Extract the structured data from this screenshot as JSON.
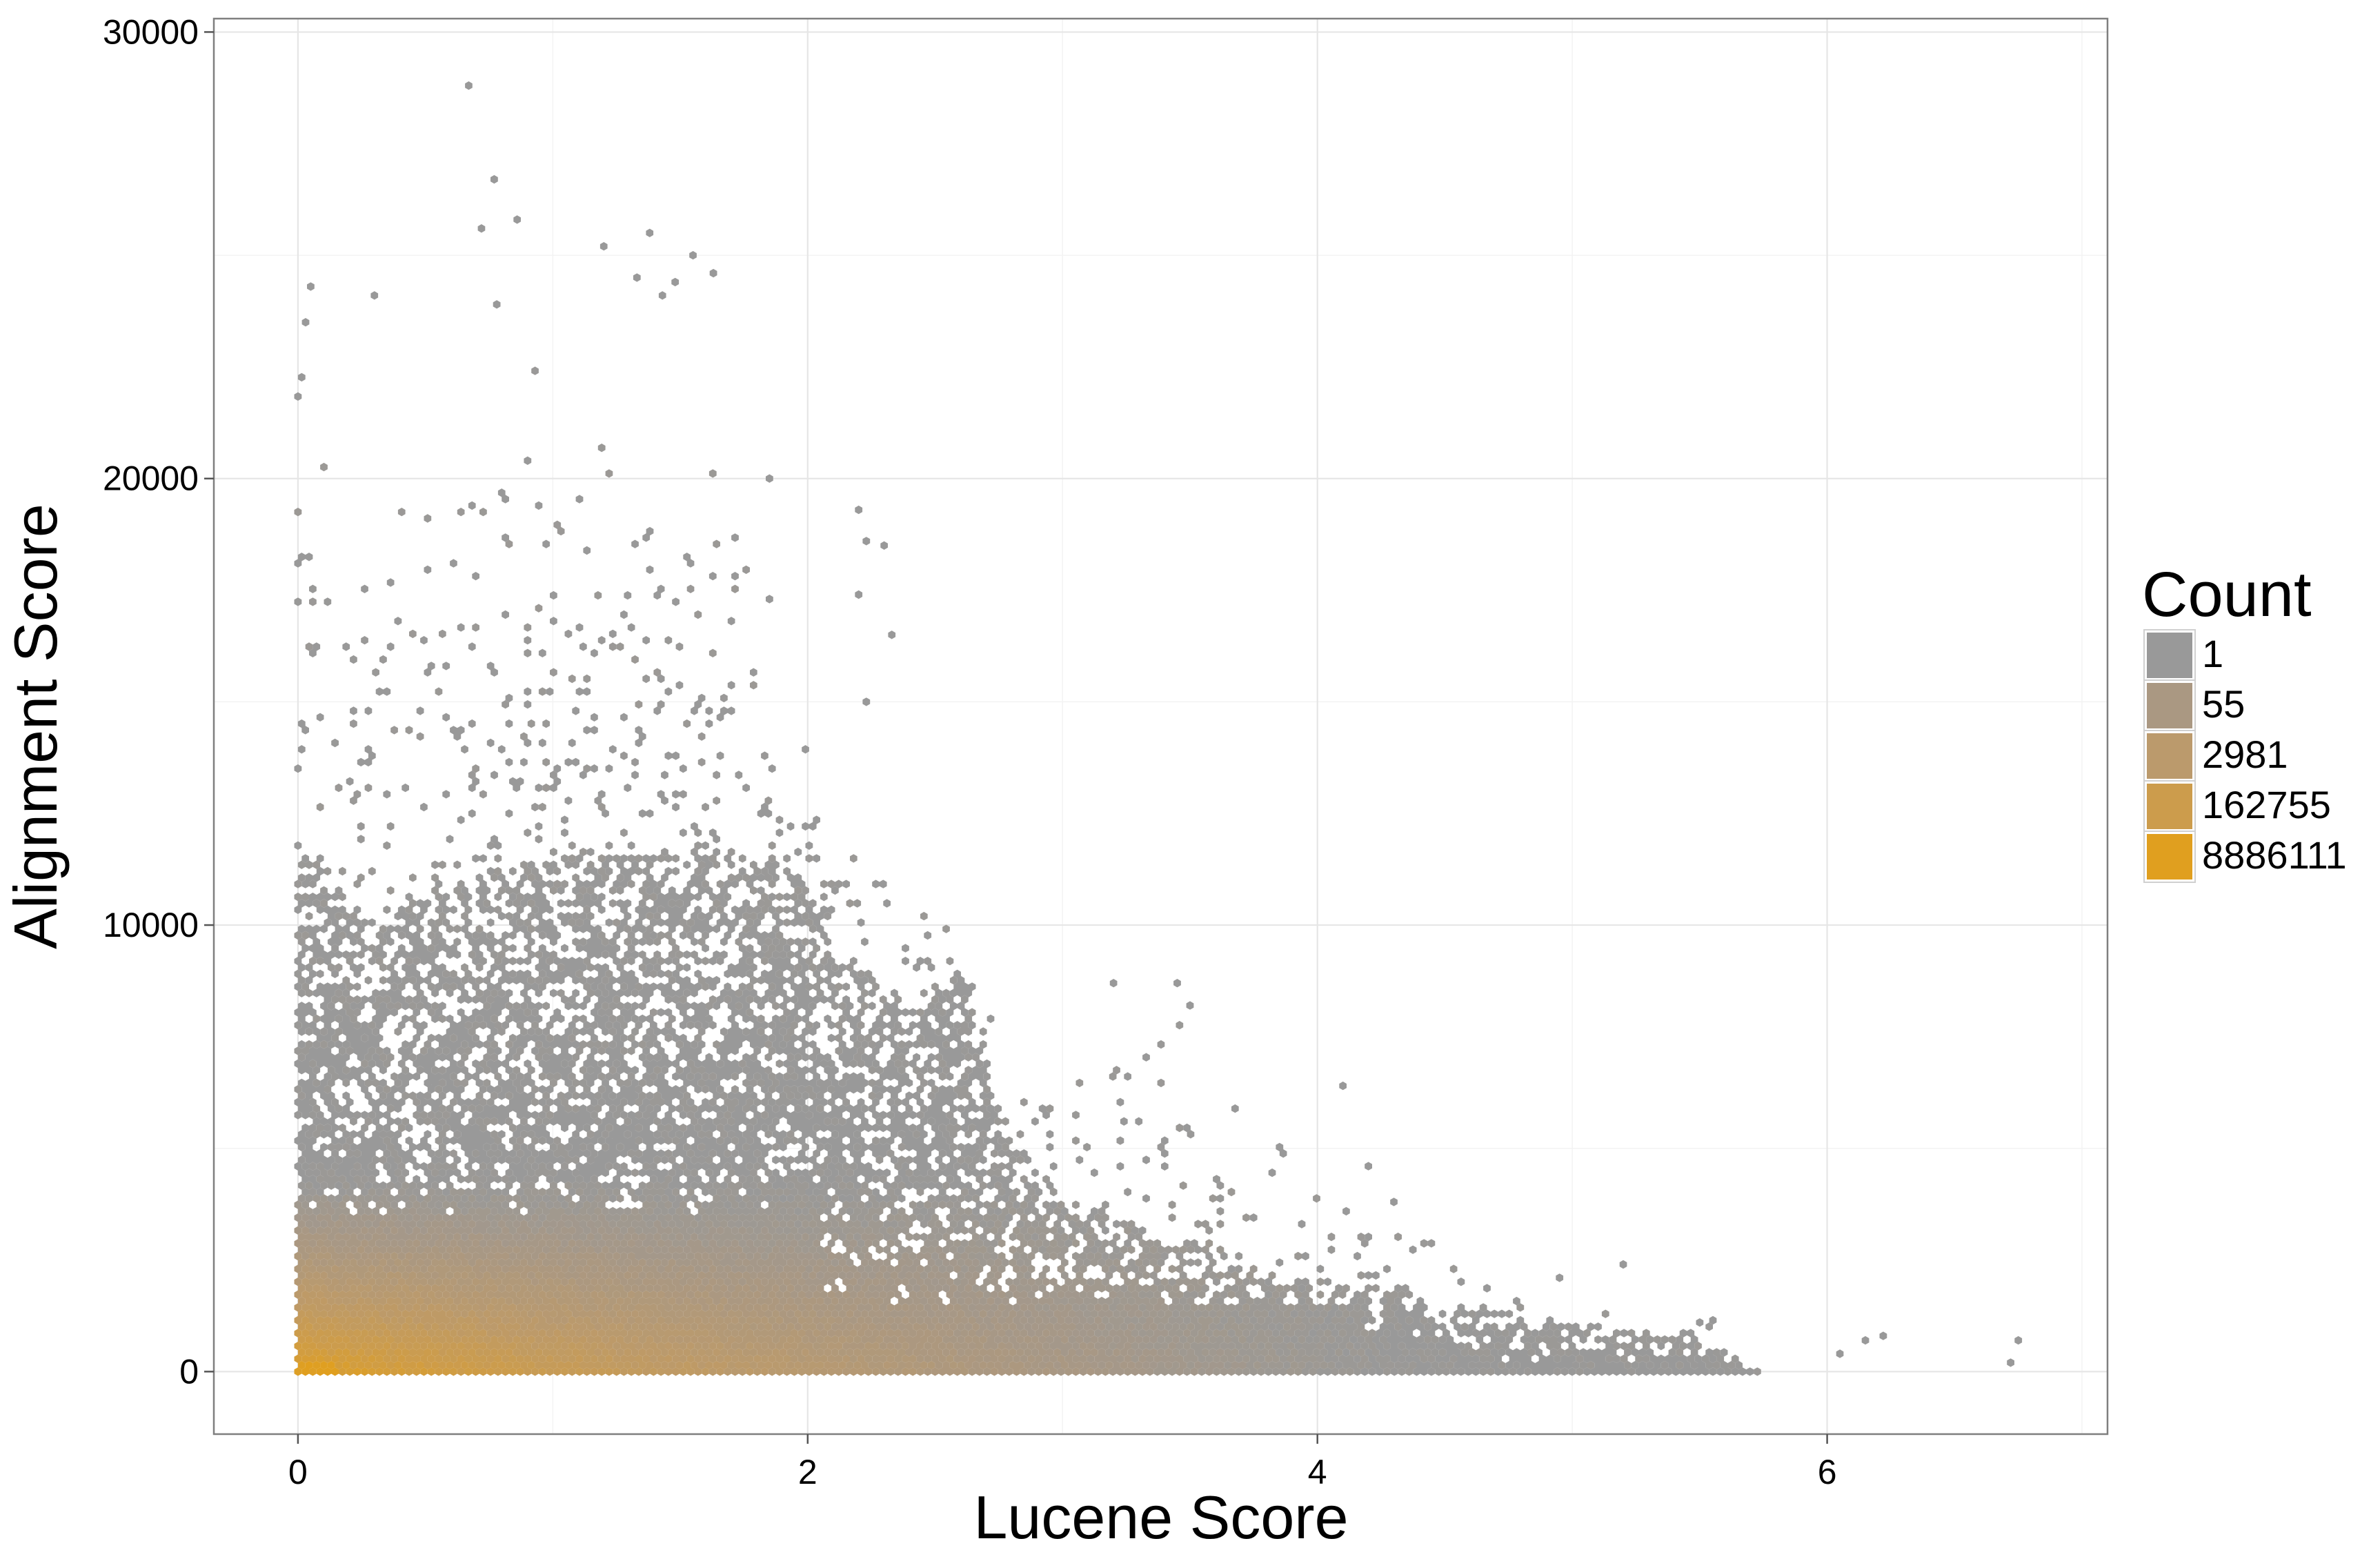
{
  "chart_data": {
    "type": "heatmap",
    "subtype": "hexbin",
    "title": "",
    "xlabel": "Lucene Score",
    "ylabel": "Alignment Score",
    "xlim": [
      -0.33,
      7.1
    ],
    "ylim": [
      -1400,
      30300
    ],
    "x_ticks": [
      0,
      2,
      4,
      6
    ],
    "x_tick_labels": [
      "0",
      "2",
      "4",
      "6"
    ],
    "y_ticks": [
      0,
      10000,
      20000,
      30000
    ],
    "y_tick_labels": [
      "0",
      "10000",
      "20000",
      "30000"
    ],
    "grid": true,
    "legend": {
      "title": "Count",
      "placement": "right",
      "entries": [
        {
          "label": "1",
          "color": "#999999"
        },
        {
          "label": "55",
          "color": "#AA9882"
        },
        {
          "label": "2981",
          "color": "#BB9A6C"
        },
        {
          "label": "162755",
          "color": "#CC9C4C"
        },
        {
          "label": "8886111",
          "color": "#E09F1F"
        }
      ]
    },
    "density_regions": [
      {
        "x": [
          0,
          0.6
        ],
        "y_max": 12000,
        "note": "bulk"
      },
      {
        "x": [
          0.6,
          1.8
        ],
        "y_max": 11500
      },
      {
        "x": [
          1.8,
          2.6
        ],
        "y_max": 8000
      },
      {
        "x": [
          2.6,
          3.7
        ],
        "y_max": 4500
      },
      {
        "x": [
          3.7,
          4.6
        ],
        "y_max": 2200
      },
      {
        "x": [
          4.6,
          5.6
        ],
        "y_max": 1200
      }
    ],
    "outliers": [
      {
        "x": 0.67,
        "y": 28800
      },
      {
        "x": 0.77,
        "y": 26700
      },
      {
        "x": 0.72,
        "y": 25600
      },
      {
        "x": 0.86,
        "y": 25800
      },
      {
        "x": 1.2,
        "y": 25200
      },
      {
        "x": 1.38,
        "y": 25500
      },
      {
        "x": 1.55,
        "y": 25000
      },
      {
        "x": 1.63,
        "y": 24600
      },
      {
        "x": 1.33,
        "y": 24500
      },
      {
        "x": 1.48,
        "y": 24400
      },
      {
        "x": 0.05,
        "y": 24300
      },
      {
        "x": 0.3,
        "y": 24100
      },
      {
        "x": 0.78,
        "y": 23900
      },
      {
        "x": 1.43,
        "y": 24100
      },
      {
        "x": 0.03,
        "y": 23500
      },
      {
        "x": 2.2,
        "y": 19300
      },
      {
        "x": 2.23,
        "y": 18600
      },
      {
        "x": 2.3,
        "y": 18500
      },
      {
        "x": 2.2,
        "y": 17400
      },
      {
        "x": 2.33,
        "y": 16500
      },
      {
        "x": 2.23,
        "y": 15000
      },
      {
        "x": 1.85,
        "y": 20000
      },
      {
        "x": 1.85,
        "y": 17300
      },
      {
        "x": 3.2,
        "y": 8700
      },
      {
        "x": 3.45,
        "y": 8700
      },
      {
        "x": 3.5,
        "y": 8200
      },
      {
        "x": 4.1,
        "y": 6400
      },
      {
        "x": 4.2,
        "y": 4600
      },
      {
        "x": 4.3,
        "y": 3800
      },
      {
        "x": 4.95,
        "y": 2100
      },
      {
        "x": 5.2,
        "y": 2400
      },
      {
        "x": 5.5,
        "y": 1100
      },
      {
        "x": 6.05,
        "y": 400
      },
      {
        "x": 6.15,
        "y": 700
      },
      {
        "x": 6.22,
        "y": 800
      },
      {
        "x": 6.72,
        "y": 200
      },
      {
        "x": 6.75,
        "y": 700
      }
    ]
  }
}
